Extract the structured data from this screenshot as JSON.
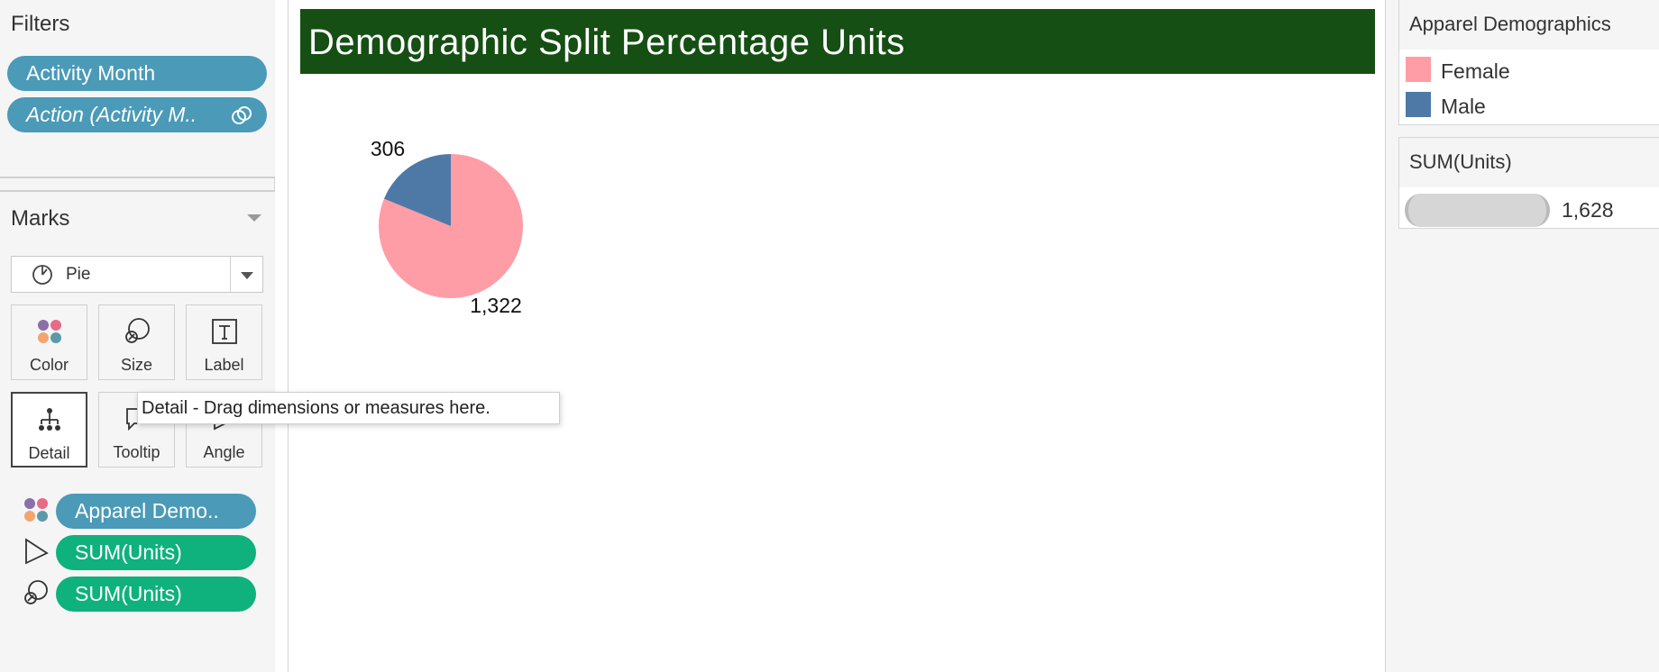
{
  "filters": {
    "title": "Filters",
    "pills": [
      {
        "label": "Activity Month"
      },
      {
        "label": "Action (Activity M.."
      }
    ]
  },
  "marks": {
    "title": "Marks",
    "mark_type": "Pie",
    "buttons": [
      "Color",
      "Size",
      "Label",
      "Detail",
      "Tooltip",
      "Angle"
    ],
    "shelf": [
      {
        "encoding": "color",
        "icon": "color-dots-icon",
        "label": "Apparel Demo..",
        "pill_color": "#4a9ab8"
      },
      {
        "encoding": "angle",
        "icon": "angle-icon",
        "label": "SUM(Units)",
        "pill_color": "#0fb17d"
      },
      {
        "encoding": "size",
        "icon": "size-icon",
        "label": "SUM(Units)",
        "pill_color": "#0fb17d"
      }
    ]
  },
  "tooltip": {
    "text": "Detail - Drag dimensions or measures here."
  },
  "view": {
    "title": "Demographic Split Percentage Units",
    "title_bg": "#164f13"
  },
  "chart_data": {
    "type": "pie",
    "slices": [
      {
        "name": "Female",
        "value": 1322,
        "label": "1,322",
        "color": "#ff9da7"
      },
      {
        "name": "Male",
        "value": 306,
        "label": "306",
        "color": "#4e79a7"
      }
    ],
    "total": 1628
  },
  "legends": {
    "color": {
      "title": "Apparel Demographics",
      "items": [
        {
          "label": "Female",
          "color": "#ff9da7"
        },
        {
          "label": "Male",
          "color": "#4e79a7"
        }
      ]
    },
    "size": {
      "title": "SUM(Units)",
      "value": "1,628"
    }
  }
}
